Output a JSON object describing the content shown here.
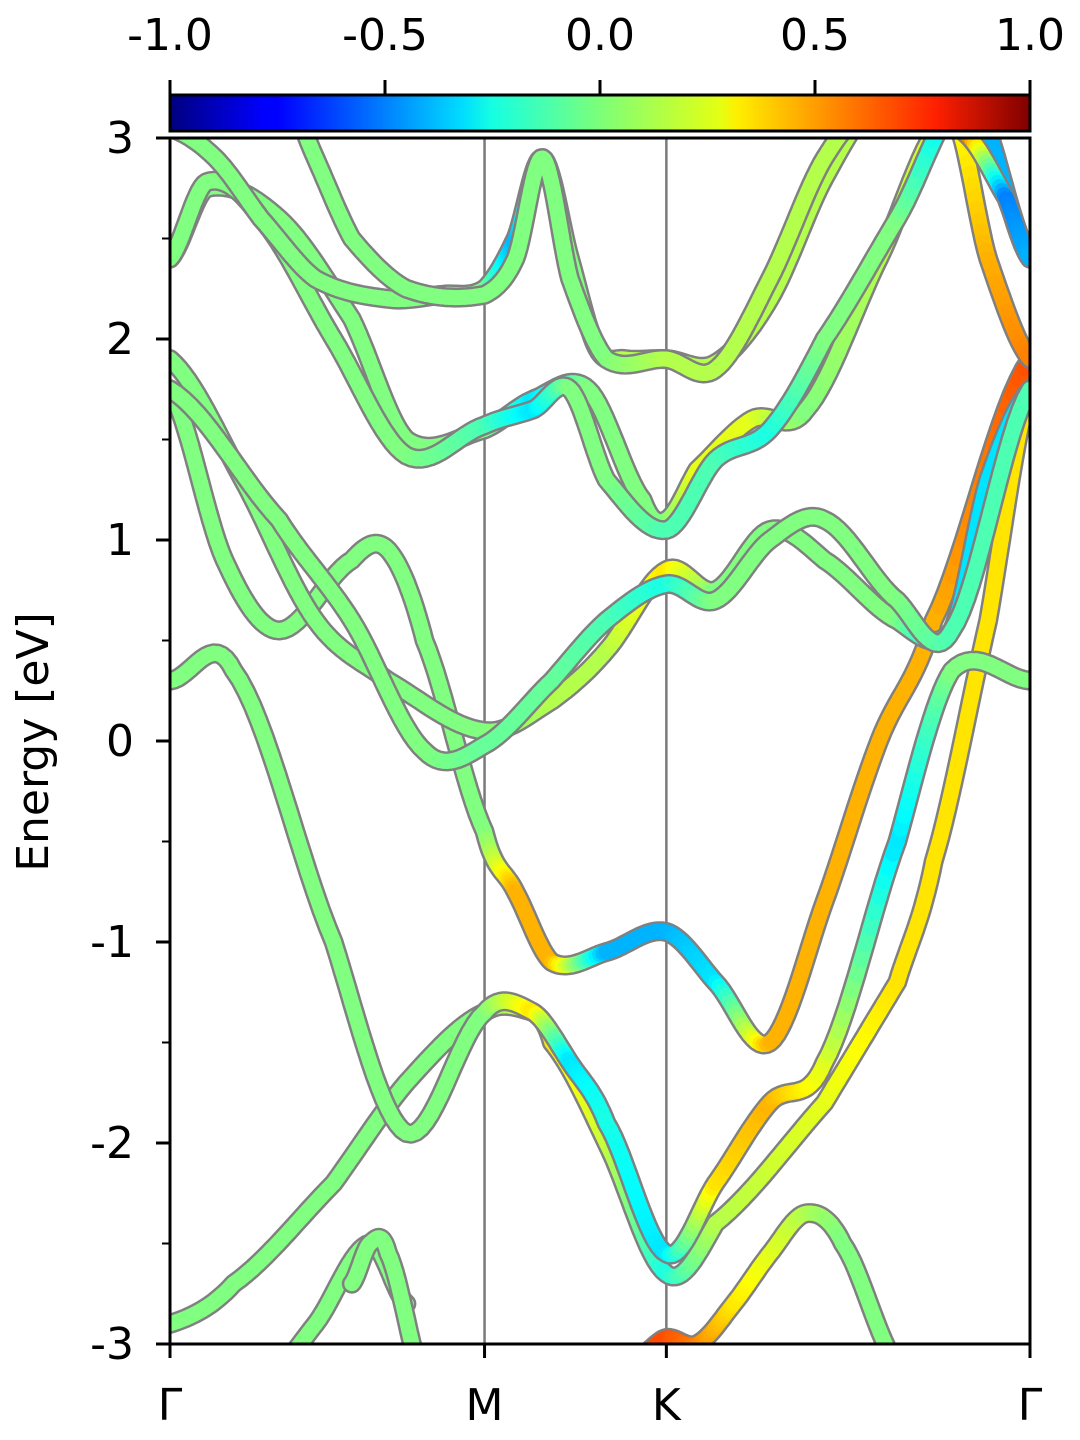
{
  "chart_data": {
    "type": "line",
    "title": "",
    "xlabel": "",
    "ylabel": "Energy [eV]",
    "ylim": [
      -3,
      3
    ],
    "xlim": [
      0,
      4.73
    ],
    "grid": false,
    "legend": "none",
    "y_ticks": [
      3,
      2,
      1,
      0,
      -1,
      -2,
      -3
    ],
    "y_tick_labels": [
      "3",
      "2",
      "1",
      "0",
      "-1",
      "-2",
      "-3"
    ],
    "k_points": [
      {
        "label": "Γ",
        "x": 0
      },
      {
        "label": "M",
        "x": 1.73
      },
      {
        "label": "K",
        "x": 2.73
      },
      {
        "label": "Γ",
        "x": 4.73
      }
    ],
    "colorbar": {
      "range": [
        -1.0,
        1.0
      ],
      "tick_values": [
        -1.0,
        -0.5,
        0.0,
        0.5,
        1.0
      ],
      "tick_labels": [
        "-1.0",
        "-0.5",
        "0.0",
        "0.5",
        "1.0"
      ],
      "colormap": "jet",
      "position": "top"
    },
    "series": [
      {
        "x": [
          0,
          0.35,
          0.9,
          1.3,
          1.73,
          2.0,
          2.1,
          2.4,
          2.73,
          3.0,
          3.6,
          4.0,
          4.2,
          4.5,
          4.73
        ],
        "y": [
          -2.9,
          -2.7,
          -2.2,
          -1.7,
          -1.35,
          -1.35,
          -1.5,
          -2.0,
          -2.65,
          -2.4,
          -1.8,
          -1.2,
          -0.6,
          0.6,
          1.75
        ],
        "c": [
          0,
          0,
          0,
          0,
          0,
          0.2,
          0.3,
          0.15,
          -0.2,
          0.1,
          0.2,
          0.3,
          0.3,
          0.3,
          0.3
        ]
      },
      {
        "x": [
          0,
          0.35,
          0.9,
          1.3,
          1.73,
          2.0,
          2.2,
          2.4,
          2.73,
          3.0,
          3.3,
          3.6,
          4.0,
          4.3,
          4.73
        ],
        "y": [
          0.3,
          0.35,
          -1.0,
          -1.95,
          -1.35,
          -1.35,
          -1.6,
          -1.9,
          -2.55,
          -2.2,
          -1.8,
          -1.6,
          -0.5,
          0.35,
          0.3
        ],
        "c": [
          0,
          0,
          0,
          0,
          0,
          0.3,
          -0.3,
          -0.2,
          -0.3,
          0.3,
          0.4,
          0.2,
          -0.3,
          0,
          0
        ]
      },
      {
        "x": [
          0,
          0.3,
          0.6,
          1.0,
          1.2,
          1.4,
          1.73,
          1.9,
          2.1,
          2.4,
          2.73,
          3.0,
          3.3,
          3.6,
          3.9,
          4.2,
          4.73
        ],
        "y": [
          1.75,
          0.9,
          0.55,
          0.9,
          0.95,
          0.5,
          -0.45,
          -0.75,
          -1.1,
          -1.05,
          -0.95,
          -1.2,
          -1.5,
          -0.8,
          0,
          0.6,
          1.9
        ],
        "c": [
          0,
          0,
          0,
          0,
          0,
          0,
          0,
          0.4,
          0.4,
          -0.4,
          -0.4,
          -0.3,
          0.4,
          0.4,
          0.4,
          0.4,
          0.6
        ]
      },
      {
        "x": [
          0,
          0.4,
          0.8,
          1.2,
          1.73,
          2.1,
          2.4,
          2.73,
          3.0,
          3.3,
          3.6,
          4.0,
          4.3,
          4.5,
          4.73
        ],
        "y": [
          1.9,
          1.3,
          0.6,
          0.3,
          0.05,
          0.2,
          0.45,
          0.85,
          0.75,
          1.05,
          0.9,
          0.6,
          0.55,
          1.3,
          1.75
        ],
        "c": [
          0,
          0,
          0,
          0,
          0,
          0.1,
          0.1,
          0.3,
          0,
          0,
          0,
          0,
          -0.3,
          -0.3,
          -0.3
        ]
      },
      {
        "x": [
          0,
          0.6,
          1.0,
          1.4,
          1.73,
          2.1,
          2.4,
          2.73,
          3.0,
          3.3,
          3.6,
          4.0,
          4.3,
          4.73
        ],
        "y": [
          1.75,
          1.1,
          0.6,
          -0.05,
          -0.02,
          0.3,
          0.6,
          0.78,
          0.7,
          1.0,
          1.1,
          0.7,
          0.55,
          1.75
        ],
        "c": [
          0,
          0,
          0,
          0,
          -0.05,
          -0.05,
          -0.1,
          -0.2,
          0,
          0,
          0,
          0,
          -0.1,
          -0.1
        ]
      },
      {
        "x": [
          0,
          0.2,
          0.6,
          1.0,
          1.3,
          1.73,
          2.0,
          2.3,
          2.6,
          2.73,
          2.9,
          3.2,
          3.5,
          3.9,
          4.3,
          4.5,
          4.73
        ],
        "y": [
          2.4,
          2.75,
          2.6,
          2.1,
          1.5,
          1.55,
          1.7,
          1.75,
          1.2,
          1.1,
          1.35,
          1.6,
          1.65,
          2.4,
          3.1,
          2.4,
          1.9
        ],
        "c": [
          0,
          0,
          0,
          0,
          0,
          0,
          -0.3,
          0,
          0,
          0,
          0.2,
          0.2,
          0,
          0.1,
          0.2,
          0.4,
          0.5
        ]
      },
      {
        "x": [
          0,
          0.2,
          0.5,
          0.9,
          1.3,
          1.73,
          2.0,
          2.2,
          2.4,
          2.73,
          3.0,
          3.3,
          3.6,
          4.0,
          4.4,
          4.73
        ],
        "y": [
          2.4,
          2.78,
          2.6,
          2.0,
          1.42,
          1.57,
          1.65,
          1.75,
          1.3,
          1.05,
          1.4,
          1.55,
          2.0,
          2.6,
          3.2,
          2.4
        ],
        "c": [
          0,
          0,
          0,
          0,
          0,
          -0.1,
          -0.3,
          0,
          0,
          -0.1,
          -0.1,
          -0.2,
          0,
          0,
          -0.4,
          -0.4
        ]
      },
      {
        "x": [
          0,
          0.25,
          0.5,
          0.8,
          1.2,
          1.5,
          1.73,
          1.9,
          2.05,
          2.2,
          2.35,
          2.5,
          2.73,
          3.0,
          3.3,
          3.6,
          3.9
        ],
        "y": [
          3.05,
          2.9,
          2.6,
          2.3,
          2.2,
          2.22,
          2.25,
          2.5,
          2.9,
          2.4,
          1.95,
          1.9,
          1.9,
          1.88,
          2.2,
          2.8,
          3.2
        ],
        "c": [
          0,
          0,
          0,
          0,
          0,
          0,
          0,
          -0.4,
          0.1,
          0,
          0,
          0.1,
          0.1,
          0.1,
          0.1,
          0.1,
          0.1
        ]
      },
      {
        "x": [
          0.6,
          0.8,
          1.0,
          1.3,
          1.73,
          1.9,
          2.05,
          2.2,
          2.4,
          2.73,
          3.0,
          3.3,
          3.6,
          3.9
        ],
        "y": [
          3.3,
          2.9,
          2.5,
          2.25,
          2.22,
          2.4,
          2.9,
          2.3,
          1.9,
          1.9,
          1.85,
          2.3,
          2.9,
          3.2
        ],
        "c": [
          0,
          0,
          0,
          0,
          0,
          0,
          0,
          0,
          0,
          0.1,
          0.1,
          0.1,
          0.1,
          0.1
        ]
      },
      {
        "x": [
          4.2,
          4.4,
          4.6,
          4.73
        ],
        "y": [
          3.1,
          3.0,
          2.7,
          2.4
        ],
        "c": [
          0.5,
          0.5,
          -0.5,
          -0.4
        ]
      },
      {
        "x": [
          0.5,
          0.8,
          1.1,
          1.3
        ],
        "y": [
          -3.2,
          -2.9,
          -2.5,
          -2.8
        ],
        "c": [
          0,
          0,
          0,
          0
        ]
      },
      {
        "x": [
          1.0,
          1.1,
          1.2,
          1.4
        ],
        "y": [
          -2.7,
          -2.5,
          -2.55,
          -3.2
        ],
        "c": [
          0,
          0,
          0,
          0
        ]
      },
      {
        "x": [
          2.6,
          2.73,
          2.9,
          3.1,
          3.3,
          3.5,
          3.7,
          4.0
        ],
        "y": [
          -3.05,
          -2.97,
          -3.0,
          -2.8,
          -2.55,
          -2.35,
          -2.5,
          -3.1
        ],
        "c": [
          0.6,
          0.6,
          0.5,
          0.3,
          0.2,
          0.1,
          0,
          0
        ]
      }
    ]
  }
}
